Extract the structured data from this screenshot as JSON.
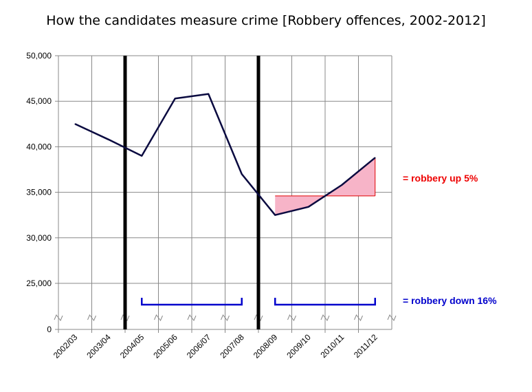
{
  "chart_data": {
    "type": "line",
    "title": "How the candidates measure crime [Robbery offences, 2002-2012]",
    "xlabel": "",
    "ylabel": "",
    "categories": [
      "2002/03",
      "2003/04",
      "2004/05",
      "2005/06",
      "2006/07",
      "2007/08",
      "2008/09",
      "2009/10",
      "2010/11",
      "2011/12"
    ],
    "series": [
      {
        "values": [
          42500,
          40800,
          39000,
          45300,
          45800,
          37000,
          32500,
          33400,
          35800,
          38800
        ]
      }
    ],
    "y_ticks": [
      "0",
      "25,000",
      "30,000",
      "35,000",
      "40,000",
      "45,000",
      "50,000"
    ],
    "y_tick_values": [
      0,
      25000,
      30000,
      35000,
      40000,
      45000,
      50000
    ],
    "ylim": [
      0,
      50000
    ],
    "broken_axis_below": 25000,
    "grid": true,
    "legend": "none",
    "series_color": "#0a0a40",
    "vertical_markers_between": [
      [
        "2003/04",
        "2004/05"
      ],
      [
        "2007/08",
        "2008/09"
      ]
    ],
    "shaded_region": {
      "baseline": 34600,
      "from": "2008/09",
      "to": "2011/12",
      "color": "#f7b4c8"
    },
    "annotations": {
      "up": {
        "text": "= robbery up 5%",
        "color": "#ee0000"
      },
      "down": {
        "text": "= robbery down 16%",
        "color": "#0000cc"
      }
    },
    "brackets": [
      {
        "from": "2004/05",
        "to": "2007/08"
      },
      {
        "from": "2008/09",
        "to": "2011/12"
      }
    ]
  }
}
